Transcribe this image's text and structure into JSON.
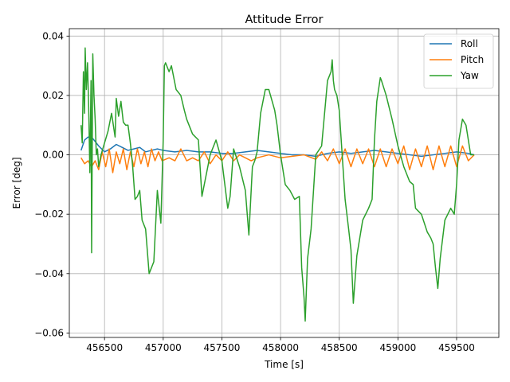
{
  "chart_data": {
    "type": "line",
    "title": "Attitude Error",
    "xlabel": "Time [s]",
    "ylabel": "Error [deg]",
    "xlim": [
      456200,
      459860
    ],
    "ylim": [
      -0.0615,
      0.0425
    ],
    "x_ticks": [
      456500,
      457000,
      457500,
      458000,
      458500,
      459000,
      459500
    ],
    "x_tick_labels": [
      "456500",
      "457000",
      "457500",
      "458000",
      "458500",
      "459000",
      "459500"
    ],
    "y_ticks": [
      -0.06,
      -0.04,
      -0.02,
      0.0,
      0.02,
      0.04
    ],
    "y_tick_labels": [
      "−0.06",
      "−0.04",
      "−0.02",
      "0.00",
      "0.02",
      "0.04"
    ],
    "grid": true,
    "legend_position": "top-right",
    "series": [
      {
        "name": "Roll",
        "color": "#1f77b4",
        "x": [
          456300,
          456330,
          456360,
          456400,
          456450,
          456500,
          456550,
          456600,
          456650,
          456700,
          456750,
          456800,
          456850,
          456900,
          456950,
          457000,
          457100,
          457200,
          457300,
          457400,
          457500,
          457600,
          457700,
          457800,
          457900,
          458000,
          458100,
          458200,
          458300,
          458400,
          458500,
          458600,
          458700,
          458800,
          458900,
          459000,
          459100,
          459200,
          459300,
          459400,
          459500,
          459600,
          459650
        ],
        "y": [
          0.0015,
          0.005,
          0.006,
          0.0055,
          0.003,
          0.001,
          0.002,
          0.0035,
          0.0025,
          0.0015,
          0.002,
          0.0025,
          0.001,
          0.0015,
          0.002,
          0.0015,
          0.001,
          0.0015,
          0.001,
          0.001,
          0.0005,
          0.0005,
          0.001,
          0.0015,
          0.001,
          0.0005,
          0.0,
          0.0,
          -0.0005,
          0.0005,
          0.001,
          0.0005,
          0.001,
          0.0015,
          0.001,
          0.0005,
          0.0,
          -0.0005,
          0.0,
          0.0005,
          0.001,
          0.0005,
          0.0
        ]
      },
      {
        "name": "Pitch",
        "color": "#ff7f0e",
        "x": [
          456300,
          456330,
          456360,
          456390,
          456420,
          456450,
          456480,
          456510,
          456540,
          456570,
          456600,
          456630,
          456660,
          456690,
          456720,
          456750,
          456780,
          456810,
          456840,
          456870,
          456900,
          456930,
          456960,
          456990,
          457050,
          457100,
          457150,
          457200,
          457250,
          457300,
          457350,
          457400,
          457450,
          457500,
          457550,
          457600,
          457650,
          457700,
          457750,
          457800,
          457900,
          458000,
          458100,
          458200,
          458300,
          458350,
          458400,
          458450,
          458500,
          458550,
          458600,
          458650,
          458700,
          458750,
          458800,
          458850,
          458900,
          458950,
          459000,
          459050,
          459100,
          459150,
          459200,
          459250,
          459300,
          459350,
          459400,
          459450,
          459500,
          459550,
          459600,
          459650
        ],
        "y": [
          -0.001,
          -0.003,
          -0.002,
          -0.004,
          -0.002,
          -0.005,
          0.001,
          -0.004,
          0.002,
          -0.006,
          0.001,
          -0.003,
          0.002,
          -0.005,
          0.001,
          -0.004,
          0.002,
          -0.003,
          0.001,
          -0.004,
          0.002,
          -0.002,
          0.001,
          -0.002,
          -0.001,
          -0.002,
          0.002,
          -0.002,
          -0.001,
          -0.002,
          0.001,
          -0.003,
          0.0,
          -0.002,
          0.001,
          -0.002,
          0.0,
          -0.001,
          -0.002,
          -0.001,
          0.0,
          -0.001,
          -0.0005,
          0.0,
          -0.0015,
          0.001,
          -0.002,
          0.002,
          -0.003,
          0.002,
          -0.004,
          0.002,
          -0.003,
          0.002,
          -0.004,
          0.002,
          -0.004,
          0.002,
          -0.003,
          0.003,
          -0.005,
          0.002,
          -0.004,
          0.003,
          -0.005,
          0.003,
          -0.004,
          0.003,
          -0.004,
          0.003,
          -0.002,
          0.0
        ]
      },
      {
        "name": "Yaw",
        "color": "#2ca02c",
        "x": [
          456300,
          456310,
          456320,
          456330,
          456335,
          456345,
          456355,
          456365,
          456375,
          456385,
          456390,
          456400,
          456410,
          456420,
          456430,
          456440,
          456450,
          456470,
          456500,
          456530,
          456560,
          456590,
          456600,
          456620,
          456640,
          456660,
          456680,
          456700,
          456720,
          456740,
          456760,
          456780,
          456800,
          456820,
          456850,
          456880,
          456900,
          456920,
          456950,
          456980,
          457000,
          457010,
          457020,
          457050,
          457070,
          457100,
          457110,
          457150,
          457180,
          457200,
          457250,
          457300,
          457330,
          457360,
          457400,
          457450,
          457500,
          457550,
          457570,
          457600,
          457650,
          457700,
          457730,
          457760,
          457780,
          457800,
          457830,
          457850,
          457870,
          457900,
          457950,
          457970,
          458000,
          458040,
          458080,
          458120,
          458160,
          458180,
          458200,
          458210,
          458230,
          458260,
          458300,
          458350,
          458400,
          458430,
          458440,
          458450,
          458460,
          458480,
          458500,
          458550,
          458580,
          458600,
          458620,
          458650,
          458700,
          458750,
          458780,
          458800,
          458820,
          458850,
          458860,
          458900,
          458950,
          459000,
          459050,
          459100,
          459130,
          459150,
          459200,
          459250,
          459280,
          459300,
          459320,
          459340,
          459360,
          459400,
          459450,
          459480,
          459500,
          459520,
          459550,
          459580,
          459600,
          459620,
          459650
        ],
        "y": [
          0.01,
          0.004,
          0.028,
          0.014,
          0.036,
          0.022,
          0.031,
          0.016,
          -0.006,
          0.025,
          -0.033,
          0.034,
          0.02,
          0.012,
          0.0,
          0.002,
          -0.004,
          0.0,
          0.004,
          0.008,
          0.014,
          0.006,
          0.019,
          0.013,
          0.018,
          0.011,
          0.01,
          0.01,
          0.004,
          -0.004,
          -0.015,
          -0.014,
          -0.012,
          -0.022,
          -0.025,
          -0.04,
          -0.038,
          -0.036,
          -0.012,
          -0.023,
          0.005,
          0.03,
          0.031,
          0.028,
          0.03,
          0.024,
          0.022,
          0.02,
          0.015,
          0.012,
          0.007,
          0.005,
          -0.014,
          -0.008,
          0.0,
          0.005,
          -0.002,
          -0.018,
          -0.014,
          0.002,
          -0.004,
          -0.012,
          -0.027,
          -0.004,
          -0.002,
          0.001,
          0.014,
          0.018,
          0.022,
          0.022,
          0.015,
          0.01,
          0.0,
          -0.01,
          -0.012,
          -0.015,
          -0.014,
          -0.038,
          -0.048,
          -0.056,
          -0.035,
          -0.025,
          0.0,
          0.003,
          0.025,
          0.028,
          0.032,
          0.025,
          0.022,
          0.02,
          0.015,
          -0.015,
          -0.025,
          -0.032,
          -0.05,
          -0.034,
          -0.022,
          -0.018,
          -0.015,
          0.005,
          0.018,
          0.026,
          0.025,
          0.02,
          0.012,
          0.003,
          -0.004,
          -0.009,
          -0.01,
          -0.018,
          -0.02,
          -0.026,
          -0.028,
          -0.03,
          -0.038,
          -0.045,
          -0.035,
          -0.022,
          -0.018,
          -0.02,
          -0.01,
          0.005,
          0.012,
          0.01,
          0.005,
          0.0,
          0.0
        ]
      }
    ]
  }
}
